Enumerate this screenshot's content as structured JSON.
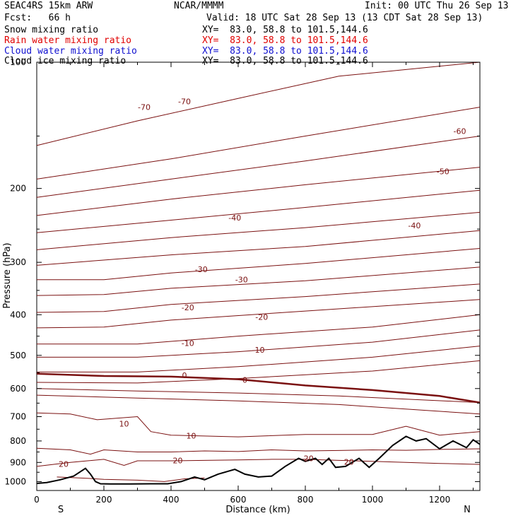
{
  "header": {
    "model": "SEAC4RS 15km ARW",
    "center": "NCAR/MMMM",
    "init": "Init: 00 UTC Thu 26 Sep 13",
    "fcst": "Fcst:   66 h",
    "valid": "Valid: 18 UTC Sat 28 Sep 13 (13 CDT Sat 28 Sep 13)",
    "fields": [
      {
        "name": "Snow mixing ratio",
        "xy": "XY=  83.0, 58.8 to 101.5,144.6",
        "color": "#000000"
      },
      {
        "name": "Rain water mixing ratio",
        "xy": "XY=  83.0, 58.8 to 101.5,144.6",
        "color": "#e00000"
      },
      {
        "name": "Cloud water mixing ratio",
        "xy": "XY=  83.0, 58.8 to 101.5,144.6",
        "color": "#1010d0"
      },
      {
        "name": "Cloud ice mixing ratio",
        "xy": "XY=  83.0, 58.8 to 101.5,144.6",
        "color": "#000000"
      }
    ]
  },
  "chart_data": {
    "type": "line",
    "xlabel": "Distance (km)",
    "ylabel": "Pressure (hPa)",
    "xlim": [
      0,
      1320
    ],
    "ylim": [
      1050,
      100
    ],
    "y_scale": "log",
    "x_ticks": [
      "0",
      "200",
      "400",
      "600",
      "800",
      "1000",
      "1200"
    ],
    "y_ticks": [
      "100",
      "200",
      "300",
      "400",
      "500",
      "600",
      "700",
      "800",
      "900",
      "1000"
    ],
    "x_end_labels": {
      "left": "S",
      "right": "N"
    },
    "contour_color": "#7a1010",
    "terrain_color": "#000000",
    "isotherms": [
      {
        "value": -70,
        "x": [
          0,
          300,
          600,
          900,
          1320
        ],
        "y": [
          158,
          138,
          122,
          108,
          100
        ]
      },
      {
        "value": -60,
        "x": [
          0,
          400,
          800,
          1320
        ],
        "y": [
          190,
          170,
          150,
          128
        ]
      },
      {
        "value": -60,
        "x": [
          0,
          400,
          800,
          1320
        ],
        "y": [
          210,
          190,
          172,
          150
        ]
      },
      {
        "value": -50,
        "x": [
          0,
          400,
          800,
          1320
        ],
        "y": [
          232,
          212,
          196,
          178
        ]
      },
      {
        "value": -50,
        "x": [
          0,
          400,
          800,
          1320
        ],
        "y": [
          255,
          238,
          222,
          202
        ]
      },
      {
        "value": -40,
        "x": [
          0,
          400,
          800,
          1320
        ],
        "y": [
          280,
          262,
          248,
          228
        ]
      },
      {
        "value": -40,
        "x": [
          0,
          400,
          800,
          1320
        ],
        "y": [
          305,
          288,
          275,
          252
        ]
      },
      {
        "value": -30,
        "x": [
          0,
          200,
          400,
          800,
          1320
        ],
        "y": [
          330,
          330,
          318,
          302,
          278
        ]
      },
      {
        "value": -30,
        "x": [
          0,
          200,
          400,
          800,
          1320
        ],
        "y": [
          360,
          358,
          346,
          332,
          308
        ]
      },
      {
        "value": -20,
        "x": [
          0,
          200,
          400,
          800,
          1320
        ],
        "y": [
          395,
          393,
          378,
          362,
          338
        ]
      },
      {
        "value": -20,
        "x": [
          0,
          200,
          400,
          800,
          1320
        ],
        "y": [
          430,
          428,
          412,
          392,
          368
        ]
      },
      {
        "value": -10,
        "x": [
          0,
          300,
          600,
          1000,
          1320
        ],
        "y": [
          470,
          470,
          450,
          428,
          400
        ]
      },
      {
        "value": -10,
        "x": [
          0,
          300,
          600,
          1000,
          1320
        ],
        "y": [
          505,
          505,
          490,
          465,
          435
        ]
      },
      {
        "value": 0,
        "x": [
          0,
          300,
          600,
          1000,
          1320
        ],
        "y": [
          548,
          548,
          532,
          505,
          475
        ]
      },
      {
        "value": 0,
        "x": [
          0,
          300,
          600,
          1000,
          1320
        ],
        "y": [
          580,
          582,
          568,
          545,
          515
        ]
      },
      {
        "value": 0,
        "x": [
          0,
          200,
          400,
          600,
          800,
          1000,
          1200,
          1320
        ],
        "y": [
          553,
          560,
          562,
          570,
          590,
          605,
          625,
          648
        ]
      },
      {
        "value": 10,
        "x": [
          0,
          300,
          600,
          900,
          1320
        ],
        "y": [
          600,
          608,
          615,
          625,
          648
        ]
      },
      {
        "value": 10,
        "x": [
          0,
          300,
          600,
          900,
          1320
        ],
        "y": [
          622,
          632,
          642,
          655,
          690
        ]
      },
      {
        "value": 10,
        "x": [
          0,
          100,
          180,
          300,
          340,
          400,
          600,
          800,
          1000,
          1100,
          1200,
          1320
        ],
        "y": [
          686,
          690,
          712,
          700,
          760,
          775,
          782,
          772,
          772,
          738,
          775,
          760
        ]
      },
      {
        "value": 20,
        "x": [
          0,
          100,
          160,
          200,
          300,
          400,
          500,
          600,
          700,
          800,
          900,
          1000,
          1100,
          1200,
          1320
        ],
        "y": [
          833,
          840,
          860,
          840,
          850,
          850,
          845,
          848,
          840,
          845,
          843,
          840,
          842,
          838,
          835
        ]
      },
      {
        "value": 20,
        "x": [
          0,
          100,
          200,
          260,
          300,
          400,
          500,
          600,
          700,
          800,
          900,
          1000,
          1100,
          1200,
          1320
        ],
        "y": [
          920,
          900,
          885,
          915,
          892,
          892,
          890,
          888,
          885,
          885,
          890,
          895,
          900,
          905,
          910
        ]
      },
      {
        "value": 20,
        "x": [
          60,
          150,
          200,
          300,
          380,
          440,
          500
        ],
        "y": [
          975,
          982,
          988,
          992,
          1000,
          985,
          980
        ]
      }
    ],
    "terrain": {
      "x": [
        0,
        30,
        70,
        110,
        145,
        160,
        175,
        190,
        220,
        280,
        340,
        390,
        430,
        470,
        500,
        540,
        590,
        620,
        660,
        700,
        740,
        780,
        800,
        830,
        850,
        870,
        890,
        920,
        960,
        990,
        1020,
        1060,
        1100,
        1130,
        1160,
        1200,
        1240,
        1280,
        1300,
        1320
      ],
      "y": [
        1010,
        1005,
        990,
        970,
        930,
        960,
        1000,
        1012,
        1013,
        1013,
        1012,
        1012,
        1000,
        975,
        990,
        960,
        935,
        960,
        975,
        970,
        920,
        880,
        895,
        880,
        910,
        880,
        925,
        920,
        880,
        925,
        880,
        820,
        780,
        800,
        790,
        835,
        800,
        830,
        795,
        815
      ]
    },
    "labels": [
      {
        "text": "-70",
        "x": 320,
        "y": 128
      },
      {
        "text": "-70",
        "x": 440,
        "y": 124
      },
      {
        "text": "-60",
        "x": 1260,
        "y": 146
      },
      {
        "text": "-50",
        "x": 1210,
        "y": 182
      },
      {
        "text": "-40",
        "x": 590,
        "y": 235
      },
      {
        "text": "-40",
        "x": 1125,
        "y": 245
      },
      {
        "text": "-30",
        "x": 490,
        "y": 312
      },
      {
        "text": "-30",
        "x": 610,
        "y": 330
      },
      {
        "text": "-20",
        "x": 450,
        "y": 384
      },
      {
        "text": "-20",
        "x": 670,
        "y": 405
      },
      {
        "text": "-10",
        "x": 450,
        "y": 468
      },
      {
        "text": "-10",
        "x": 660,
        "y": 485
      },
      {
        "text": "0",
        "x": 440,
        "y": 558
      },
      {
        "text": "0",
        "x": 620,
        "y": 572
      },
      {
        "text": "10",
        "x": 260,
        "y": 728
      },
      {
        "text": "10",
        "x": 460,
        "y": 778
      },
      {
        "text": "20",
        "x": 80,
        "y": 908
      },
      {
        "text": "20",
        "x": 420,
        "y": 890
      },
      {
        "text": "20",
        "x": 810,
        "y": 880
      },
      {
        "text": "20",
        "x": 930,
        "y": 898
      }
    ]
  }
}
